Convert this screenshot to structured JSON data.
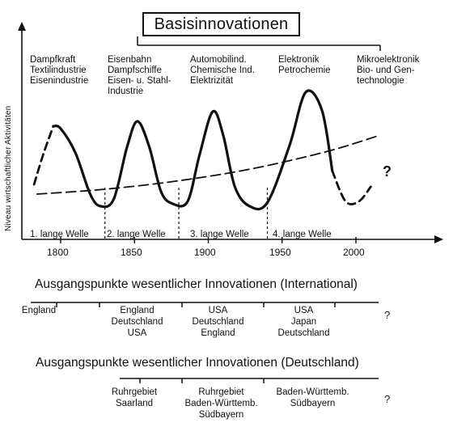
{
  "title": "Basisinnovationen",
  "y_axis_label": "Niveau wirtschaftlicher Aktivitäten",
  "innovations": [
    {
      "lines": [
        "Dampfkraft",
        "Textilindustrie",
        "Eisenindustrie"
      ]
    },
    {
      "lines": [
        "Eisenbahn",
        "Dampfschiffe",
        "Eisen- u. Stahl-",
        "Industrie"
      ]
    },
    {
      "lines": [
        "Automobilind.",
        "Chemische Ind.",
        "Elektrizität"
      ]
    },
    {
      "lines": [
        "Elektronik",
        "Petrochemie"
      ]
    },
    {
      "lines": [
        "Mikroelektronik",
        "Bio- und Gen-",
        "technologie"
      ]
    }
  ],
  "x_ticks": [
    "1800",
    "1850",
    "1900",
    "1950",
    "2000"
  ],
  "waves": [
    "1. lange Welle",
    "2. lange Welle",
    "3. lange Welle",
    "4. lange Welle"
  ],
  "future_mark": "?",
  "international": {
    "title": "Ausgangspunkte wesentlicher Innovationen (International)",
    "groups": [
      {
        "lines": [
          "England"
        ]
      },
      {
        "lines": [
          "England",
          "Deutschland",
          "USA"
        ]
      },
      {
        "lines": [
          "USA",
          "Deutschland",
          "England"
        ]
      },
      {
        "lines": [
          "USA",
          "Japan",
          "Deutschland"
        ]
      }
    ],
    "question": "?"
  },
  "germany": {
    "title": "Ausgangspunkte wesentlicher Innovationen (Deutschland)",
    "groups": [
      {
        "lines": [
          "Ruhrgebiet",
          "Saarland"
        ]
      },
      {
        "lines": [
          "Ruhrgebiet",
          "Baden-Württemb.",
          "Südbayern"
        ]
      },
      {
        "lines": [
          "Baden-Württemb.",
          "Südbayern"
        ]
      }
    ],
    "question": "?"
  },
  "chart_data": {
    "type": "line",
    "xlabel": "",
    "ylabel": "Niveau wirtschaftlicher Aktivitäten",
    "xlim": [
      1780,
      2030
    ],
    "x_ticks": [
      1800,
      1850,
      1900,
      1950,
      2000
    ],
    "wave_boundaries": [
      1830,
      1880,
      1940
    ],
    "series": [
      {
        "style": "solid",
        "points": [
          [
            1795,
            0.72
          ],
          [
            1800,
            0.7
          ],
          [
            1810,
            0.5
          ],
          [
            1820,
            0.16
          ],
          [
            1827,
            0.06
          ],
          [
            1836,
            0.12
          ],
          [
            1845,
            0.55
          ],
          [
            1852,
            0.76
          ],
          [
            1860,
            0.55
          ],
          [
            1868,
            0.18
          ],
          [
            1876,
            0.08
          ],
          [
            1886,
            0.1
          ],
          [
            1894,
            0.48
          ],
          [
            1903,
            0.84
          ],
          [
            1910,
            0.65
          ],
          [
            1918,
            0.22
          ],
          [
            1928,
            0.06
          ],
          [
            1940,
            0.09
          ],
          [
            1955,
            0.56
          ],
          [
            1966,
            1.0
          ],
          [
            1977,
            0.85
          ],
          [
            1984,
            0.35
          ]
        ]
      },
      {
        "style": "dashed",
        "points": [
          [
            1782,
            0.24
          ],
          [
            1788,
            0.48
          ],
          [
            1795,
            0.72
          ]
        ]
      },
      {
        "style": "dashed",
        "points": [
          [
            1984,
            0.35
          ],
          [
            1993,
            0.1
          ],
          [
            2002,
            0.1
          ],
          [
            2010,
            0.22
          ]
        ]
      },
      {
        "style": "dashed",
        "points": [
          [
            1784,
            0.16
          ],
          [
            1830,
            0.2
          ],
          [
            1880,
            0.27
          ],
          [
            1930,
            0.37
          ],
          [
            1980,
            0.51
          ],
          [
            2015,
            0.64
          ]
        ]
      }
    ]
  }
}
